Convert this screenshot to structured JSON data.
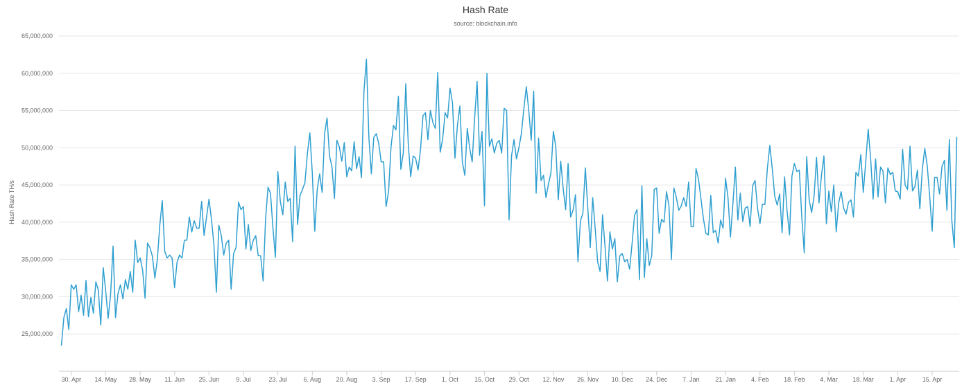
{
  "chart_data": {
    "type": "line",
    "title": "Hash Rate",
    "subtitle": "source: blockchain.info",
    "xlabel": "",
    "ylabel": "Hash Rate TH/s",
    "grid": true,
    "legend": "none",
    "ylim": [
      20000000,
      65000000
    ],
    "y_ticks": [
      {
        "value": 25000000,
        "label": "25,000,000"
      },
      {
        "value": 30000000,
        "label": "30,000,000"
      },
      {
        "value": 35000000,
        "label": "35,000,000"
      },
      {
        "value": 40000000,
        "label": "40,000,000"
      },
      {
        "value": 45000000,
        "label": "45,000,000"
      },
      {
        "value": 50000000,
        "label": "50,000,000"
      },
      {
        "value": 55000000,
        "label": "55,000,000"
      },
      {
        "value": 60000000,
        "label": "60,000,000"
      },
      {
        "value": 65000000,
        "label": "65,000,000"
      }
    ],
    "x_ticks": [
      {
        "date": "2017-04-30",
        "label": "30. Apr"
      },
      {
        "date": "2017-05-14",
        "label": "14. May"
      },
      {
        "date": "2017-05-28",
        "label": "28. May"
      },
      {
        "date": "2017-06-11",
        "label": "11. Jun"
      },
      {
        "date": "2017-06-25",
        "label": "25. Jun"
      },
      {
        "date": "2017-07-09",
        "label": "9. Jul"
      },
      {
        "date": "2017-07-23",
        "label": "23. Jul"
      },
      {
        "date": "2017-08-06",
        "label": "6. Aug"
      },
      {
        "date": "2017-08-20",
        "label": "20. Aug"
      },
      {
        "date": "2017-09-03",
        "label": "3. Sep"
      },
      {
        "date": "2017-09-17",
        "label": "17. Sep"
      },
      {
        "date": "2017-10-01",
        "label": "1. Oct"
      },
      {
        "date": "2017-10-15",
        "label": "15. Oct"
      },
      {
        "date": "2017-10-29",
        "label": "29. Oct"
      },
      {
        "date": "2017-11-12",
        "label": "12. Nov"
      },
      {
        "date": "2017-11-26",
        "label": "26. Nov"
      },
      {
        "date": "2017-12-10",
        "label": "10. Dec"
      },
      {
        "date": "2017-12-24",
        "label": "24. Dec"
      },
      {
        "date": "2018-01-07",
        "label": "7. Jan"
      },
      {
        "date": "2018-01-21",
        "label": "21. Jan"
      },
      {
        "date": "2018-02-04",
        "label": "4. Feb"
      },
      {
        "date": "2018-02-18",
        "label": "18. Feb"
      },
      {
        "date": "2018-03-04",
        "label": "4. Mar"
      },
      {
        "date": "2018-03-18",
        "label": "18. Mar"
      },
      {
        "date": "2018-04-01",
        "label": "1. Apr"
      },
      {
        "date": "2018-04-15",
        "label": "15. Apr"
      }
    ],
    "xlim": [
      "2017-04-25",
      "2018-04-26"
    ],
    "series": [
      {
        "x": [
          "2017-04-26",
          "2017-04-27",
          "2017-04-28",
          "2017-04-29",
          "2017-04-30",
          "2017-05-01",
          "2017-05-02",
          "2017-05-03",
          "2017-05-04",
          "2017-05-05",
          "2017-05-06",
          "2017-05-07",
          "2017-05-08",
          "2017-05-09",
          "2017-05-10",
          "2017-05-11",
          "2017-05-12",
          "2017-05-13",
          "2017-05-14",
          "2017-05-15",
          "2017-05-16",
          "2017-05-17",
          "2017-05-18",
          "2017-05-19",
          "2017-05-20",
          "2017-05-21",
          "2017-05-22",
          "2017-05-23",
          "2017-05-24",
          "2017-05-25",
          "2017-05-26",
          "2017-05-27",
          "2017-05-28",
          "2017-05-29",
          "2017-05-30",
          "2017-05-31",
          "2017-06-01",
          "2017-06-02",
          "2017-06-03",
          "2017-06-04",
          "2017-06-05",
          "2017-06-06",
          "2017-06-07",
          "2017-06-08",
          "2017-06-09",
          "2017-06-10",
          "2017-06-11",
          "2017-06-12",
          "2017-06-13",
          "2017-06-14",
          "2017-06-15",
          "2017-06-16",
          "2017-06-17",
          "2017-06-18",
          "2017-06-19",
          "2017-06-20",
          "2017-06-21",
          "2017-06-22",
          "2017-06-23",
          "2017-06-24",
          "2017-06-25",
          "2017-06-26",
          "2017-06-27",
          "2017-06-28",
          "2017-06-29",
          "2017-06-30",
          "2017-07-01",
          "2017-07-02",
          "2017-07-03",
          "2017-07-04",
          "2017-07-05",
          "2017-07-06",
          "2017-07-07",
          "2017-07-08",
          "2017-07-09",
          "2017-07-10",
          "2017-07-11",
          "2017-07-12",
          "2017-07-13",
          "2017-07-14",
          "2017-07-15",
          "2017-07-16",
          "2017-07-17",
          "2017-07-18",
          "2017-07-19",
          "2017-07-20",
          "2017-07-21",
          "2017-07-22",
          "2017-07-23",
          "2017-07-24",
          "2017-07-25",
          "2017-07-26",
          "2017-07-27",
          "2017-07-28",
          "2017-07-29",
          "2017-07-30",
          "2017-07-31",
          "2017-08-01",
          "2017-08-02",
          "2017-08-03",
          "2017-08-04",
          "2017-08-05",
          "2017-08-06",
          "2017-08-07",
          "2017-08-08",
          "2017-08-09",
          "2017-08-10",
          "2017-08-11",
          "2017-08-12",
          "2017-08-13",
          "2017-08-14",
          "2017-08-15",
          "2017-08-16",
          "2017-08-17",
          "2017-08-18",
          "2017-08-19",
          "2017-08-20",
          "2017-08-21",
          "2017-08-22",
          "2017-08-23",
          "2017-08-24",
          "2017-08-25",
          "2017-08-26",
          "2017-08-27",
          "2017-08-28",
          "2017-08-29",
          "2017-08-30",
          "2017-08-31",
          "2017-09-01",
          "2017-09-02",
          "2017-09-03",
          "2017-09-04",
          "2017-09-05",
          "2017-09-06",
          "2017-09-07",
          "2017-09-08",
          "2017-09-09",
          "2017-09-10",
          "2017-09-11",
          "2017-09-12",
          "2017-09-13",
          "2017-09-14",
          "2017-09-15",
          "2017-09-16",
          "2017-09-17",
          "2017-09-18",
          "2017-09-19",
          "2017-09-20",
          "2017-09-21",
          "2017-09-22",
          "2017-09-23",
          "2017-09-24",
          "2017-09-25",
          "2017-09-26",
          "2017-09-27",
          "2017-09-28",
          "2017-09-29",
          "2017-09-30",
          "2017-10-01",
          "2017-10-02",
          "2017-10-03",
          "2017-10-04",
          "2017-10-05",
          "2017-10-06",
          "2017-10-07",
          "2017-10-08",
          "2017-10-09",
          "2017-10-10",
          "2017-10-11",
          "2017-10-12",
          "2017-10-13",
          "2017-10-14",
          "2017-10-15",
          "2017-10-16",
          "2017-10-17",
          "2017-10-18",
          "2017-10-19",
          "2017-10-20",
          "2017-10-21",
          "2017-10-22",
          "2017-10-23",
          "2017-10-24",
          "2017-10-25",
          "2017-10-26",
          "2017-10-27",
          "2017-10-28",
          "2017-10-29",
          "2017-10-30",
          "2017-10-31",
          "2017-11-01",
          "2017-11-02",
          "2017-11-03",
          "2017-11-04",
          "2017-11-05",
          "2017-11-06",
          "2017-11-07",
          "2017-11-08",
          "2017-11-09",
          "2017-11-10",
          "2017-11-11",
          "2017-11-12",
          "2017-11-13",
          "2017-11-14",
          "2017-11-15",
          "2017-11-16",
          "2017-11-17",
          "2017-11-18",
          "2017-11-19",
          "2017-11-20",
          "2017-11-21",
          "2017-11-22",
          "2017-11-23",
          "2017-11-24",
          "2017-11-25",
          "2017-11-26",
          "2017-11-27",
          "2017-11-28",
          "2017-11-29",
          "2017-11-30",
          "2017-12-01",
          "2017-12-02",
          "2017-12-03",
          "2017-12-04",
          "2017-12-05",
          "2017-12-06",
          "2017-12-07",
          "2017-12-08",
          "2017-12-09",
          "2017-12-10",
          "2017-12-11",
          "2017-12-12",
          "2017-12-13",
          "2017-12-14",
          "2017-12-15",
          "2017-12-16",
          "2017-12-17",
          "2017-12-18",
          "2017-12-19",
          "2017-12-20",
          "2017-12-21",
          "2017-12-22",
          "2017-12-23",
          "2017-12-24",
          "2017-12-25",
          "2017-12-26",
          "2017-12-27",
          "2017-12-28",
          "2017-12-29",
          "2017-12-30",
          "2017-12-31",
          "2018-01-01",
          "2018-01-02",
          "2018-01-03",
          "2018-01-04",
          "2018-01-05",
          "2018-01-06",
          "2018-01-07",
          "2018-01-08",
          "2018-01-09",
          "2018-01-10",
          "2018-01-11",
          "2018-01-12",
          "2018-01-13",
          "2018-01-14",
          "2018-01-15",
          "2018-01-16",
          "2018-01-17",
          "2018-01-18",
          "2018-01-19",
          "2018-01-20",
          "2018-01-21",
          "2018-01-22",
          "2018-01-23",
          "2018-01-24",
          "2018-01-25",
          "2018-01-26",
          "2018-01-27",
          "2018-01-28",
          "2018-01-29",
          "2018-01-30",
          "2018-01-31",
          "2018-02-01",
          "2018-02-02",
          "2018-02-03",
          "2018-02-04",
          "2018-02-05",
          "2018-02-06",
          "2018-02-07",
          "2018-02-08",
          "2018-02-09",
          "2018-02-10",
          "2018-02-11",
          "2018-02-12",
          "2018-02-13",
          "2018-02-14",
          "2018-02-15",
          "2018-02-16",
          "2018-02-17",
          "2018-02-18",
          "2018-02-19",
          "2018-02-20",
          "2018-02-21",
          "2018-02-22",
          "2018-02-23",
          "2018-02-24",
          "2018-02-25",
          "2018-02-26",
          "2018-02-27",
          "2018-02-28",
          "2018-03-01",
          "2018-03-02",
          "2018-03-03",
          "2018-03-04",
          "2018-03-05",
          "2018-03-06",
          "2018-03-07",
          "2018-03-08",
          "2018-03-09",
          "2018-03-10",
          "2018-03-11",
          "2018-03-12",
          "2018-03-13",
          "2018-03-14",
          "2018-03-15",
          "2018-03-16",
          "2018-03-17",
          "2018-03-18",
          "2018-03-19",
          "2018-03-20",
          "2018-03-21",
          "2018-03-22",
          "2018-03-23",
          "2018-03-24",
          "2018-03-25",
          "2018-03-26",
          "2018-03-27",
          "2018-03-28",
          "2018-03-29",
          "2018-03-30",
          "2018-03-31",
          "2018-04-01",
          "2018-04-02",
          "2018-04-03",
          "2018-04-04",
          "2018-04-05",
          "2018-04-06",
          "2018-04-07",
          "2018-04-08",
          "2018-04-09",
          "2018-04-10",
          "2018-04-11",
          "2018-04-12",
          "2018-04-13",
          "2018-04-14",
          "2018-04-15",
          "2018-04-16",
          "2018-04-17",
          "2018-04-18",
          "2018-04-19",
          "2018-04-20",
          "2018-04-21",
          "2018-04-22",
          "2018-04-23",
          "2018-04-24",
          "2018-04-25"
        ],
        "values": [
          23500000,
          27200000,
          28400000,
          25600000,
          31600000,
          31000000,
          31600000,
          28000000,
          30200000,
          27500000,
          32200000,
          27300000,
          29900000,
          27800000,
          32000000,
          30900000,
          26200000,
          33900000,
          30800000,
          27100000,
          30300000,
          36800000,
          27200000,
          30400000,
          31600000,
          29700000,
          32300000,
          31000000,
          33400000,
          30600000,
          37600000,
          34600000,
          35200000,
          33600000,
          29800000,
          37200000,
          36600000,
          35400000,
          32500000,
          35000000,
          39600000,
          42900000,
          36100000,
          35200000,
          35600000,
          35200000,
          31200000,
          34600000,
          35600000,
          35200000,
          37600000,
          37600000,
          40700000,
          38700000,
          40200000,
          39200000,
          39200000,
          42800000,
          38200000,
          40700000,
          43100000,
          40400000,
          37000000,
          30600000,
          39600000,
          38200000,
          35600000,
          37200000,
          37600000,
          31000000,
          35800000,
          36600000,
          42700000,
          41700000,
          42100000,
          36400000,
          39700000,
          36200000,
          37600000,
          38200000,
          35500000,
          35500000,
          32100000,
          40400000,
          44700000,
          43900000,
          39200000,
          35300000,
          46800000,
          42800000,
          41000000,
          45400000,
          42800000,
          43200000,
          37400000,
          50200000,
          39700000,
          43600000,
          44400000,
          45300000,
          49200000,
          52000000,
          46600000,
          38800000,
          44400000,
          46500000,
          44000000,
          51900000,
          54000000,
          48900000,
          47400000,
          43200000,
          51000000,
          50100000,
          48200000,
          50700000,
          46100000,
          47400000,
          46900000,
          50800000,
          47200000,
          48800000,
          46000000,
          57600000,
          61900000,
          51400000,
          46500000,
          51400000,
          51900000,
          50600000,
          48100000,
          48100000,
          42100000,
          44100000,
          50100000,
          53000000,
          52400000,
          56900000,
          47100000,
          49300000,
          58600000,
          50600000,
          46100000,
          48900000,
          48600000,
          47000000,
          49800000,
          54300000,
          54700000,
          51100000,
          55000000,
          53400000,
          52600000,
          60100000,
          49400000,
          51200000,
          54700000,
          54000000,
          58000000,
          56000000,
          48600000,
          53000000,
          55600000,
          48100000,
          46300000,
          52600000,
          49900000,
          48100000,
          54000000,
          58900000,
          49000000,
          52200000,
          42200000,
          60000000,
          50200000,
          51200000,
          49300000,
          50600000,
          51000000,
          49300000,
          55300000,
          55000000,
          40300000,
          48900000,
          51100000,
          48500000,
          50000000,
          51900000,
          55200000,
          58200000,
          55000000,
          51000000,
          57600000,
          43900000,
          51300000,
          45600000,
          46300000,
          43300000,
          45100000,
          46600000,
          52200000,
          50100000,
          43000000,
          48200000,
          44500000,
          41700000,
          47900000,
          40700000,
          41600000,
          43700000,
          34700000,
          40200000,
          41200000,
          47300000,
          41900000,
          36600000,
          43300000,
          39200000,
          34700000,
          33400000,
          41000000,
          36800000,
          32100000,
          38700000,
          36400000,
          37800000,
          32000000,
          35500000,
          35800000,
          34700000,
          35000000,
          33700000,
          37100000,
          40900000,
          41700000,
          32300000,
          44900000,
          32600000,
          37800000,
          34200000,
          35500000,
          44400000,
          44600000,
          38500000,
          40400000,
          40000000,
          44100000,
          42200000,
          35000000,
          44600000,
          43300000,
          41600000,
          42200000,
          43300000,
          42100000,
          45400000,
          39400000,
          39400000,
          47200000,
          45800000,
          43200000,
          40500000,
          38500000,
          38300000,
          43600000,
          38600000,
          38900000,
          37200000,
          40300000,
          39200000,
          45900000,
          43300000,
          38000000,
          42500000,
          47400000,
          40300000,
          43900000,
          40100000,
          41900000,
          42100000,
          39400000,
          44900000,
          45600000,
          41900000,
          39800000,
          42400000,
          42400000,
          47200000,
          50300000,
          47200000,
          43500000,
          42300000,
          43800000,
          38600000,
          46100000,
          41600000,
          38300000,
          46200000,
          47900000,
          46800000,
          47000000,
          40700000,
          35900000,
          48800000,
          43000000,
          41300000,
          43500000,
          48700000,
          42600000,
          46300000,
          48900000,
          39800000,
          44200000,
          41400000,
          45000000,
          38700000,
          42600000,
          44100000,
          41900000,
          41100000,
          42700000,
          43000000,
          40700000,
          46700000,
          46200000,
          49100000,
          44000000,
          48100000,
          52500000,
          48500000,
          43100000,
          48500000,
          43400000,
          47400000,
          46900000,
          42600000,
          47300000,
          46400000,
          46700000,
          44200000,
          44100000,
          43100000,
          49800000,
          45000000,
          44400000,
          50200000,
          44200000,
          44800000,
          47000000,
          41800000,
          47100000,
          49900000,
          47600000,
          43500000,
          38800000,
          46000000,
          46000000,
          43800000,
          47500000,
          48300000,
          41600000,
          51100000,
          40200000,
          36600000,
          51400000
        ]
      }
    ]
  }
}
